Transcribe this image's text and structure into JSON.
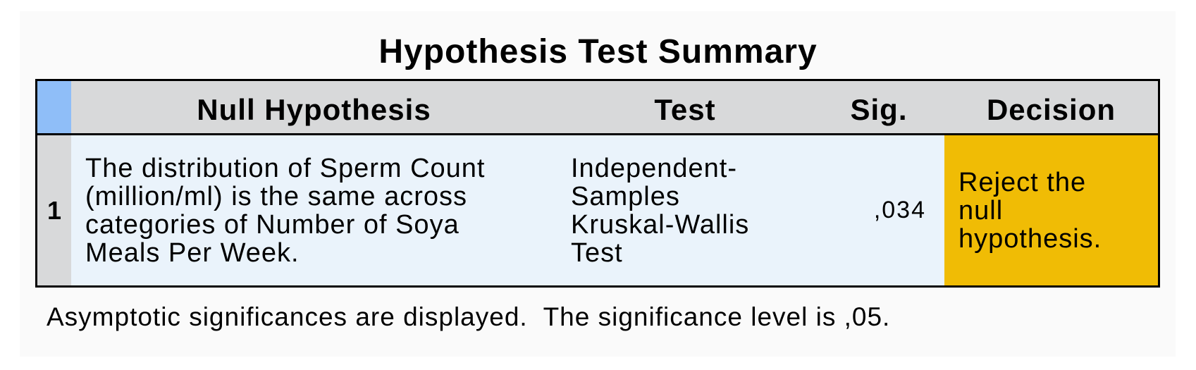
{
  "title": "Hypothesis Test Summary",
  "table": {
    "headers": {
      "null_hypothesis": "Null Hypothesis",
      "test": "Test",
      "sig": "Sig.",
      "decision": "Decision"
    },
    "rows": [
      {
        "index": "1",
        "null_hypothesis": "The distribution of Sperm Count\n(million/ml) is the same across\ncategories of Number of Soya\nMeals Per Week.",
        "test": "Independent-\nSamples\nKruskal-Wallis\nTest",
        "sig": ",034",
        "decision": "Reject the\nnull\nhypothesis."
      }
    ]
  },
  "footnote": "Asymptotic significances are displayed.  The significance level is ,05.",
  "colors": {
    "header_bg": "#d8d9da",
    "corner_bg": "#8fbef8",
    "body_bg": "#eaf3fb",
    "decision_bg": "#f0bc05"
  }
}
